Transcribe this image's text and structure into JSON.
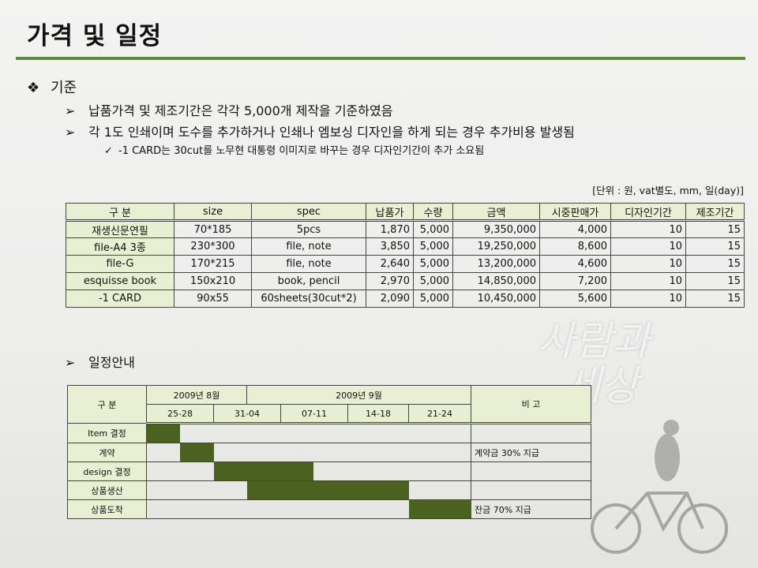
{
  "title": "가격 및 일정",
  "criteria": {
    "heading": "기준",
    "items": [
      "납품가격 및 제조기간은 각각 5,000개 제작을 기준하였음",
      "각 1도 인쇄이며 도수를 추가하거나 인쇄나 엠보싱 디자인을 하게 되는 경우 추가비용 발생됨"
    ],
    "sub": "-1 CARD는 30cut를 노무현 대통령 이미지로 바꾸는 경우 디자인기간이 추가 소요됨"
  },
  "unit": "[단위 : 원, vat별도, mm, 일(day)]",
  "price_table": {
    "headers": [
      "구 분",
      "size",
      "spec",
      "납품가",
      "수량",
      "금액",
      "시중판매가",
      "디자인기간",
      "제조기간"
    ],
    "rows": [
      [
        "재생신문연필",
        "70*185",
        "5pcs",
        "1,870",
        "5,000",
        "9,350,000",
        "4,000",
        "10",
        "15"
      ],
      [
        "file-A4 3종",
        "230*300",
        "file, note",
        "3,850",
        "5,000",
        "19,250,000",
        "8,600",
        "10",
        "15"
      ],
      [
        "file-G",
        "170*215",
        "file, note",
        "2,640",
        "5,000",
        "13,200,000",
        "4,600",
        "10",
        "15"
      ],
      [
        "esquisse book",
        "150x210",
        "book, pencil",
        "2,970",
        "5,000",
        "14,850,000",
        "7,200",
        "10",
        "15"
      ],
      [
        "-1 CARD",
        "90x55",
        "60sheets(30cut*2)",
        "2,090",
        "5,000",
        "10,450,000",
        "5,600",
        "10",
        "15"
      ]
    ]
  },
  "schedule": {
    "heading": "일정안내",
    "col_label": "구 분",
    "note_label": "비 고",
    "months": [
      "2009년 8월",
      "2009년 9월"
    ],
    "weeks": [
      "25-28",
      "31-04",
      "07-11",
      "14-18",
      "21-24"
    ],
    "tasks": [
      {
        "name": "Item 결정",
        "start": 0,
        "end": 1,
        "note": ""
      },
      {
        "name": "계약",
        "start": 1,
        "end": 2,
        "note": "계약금 30% 지급"
      },
      {
        "name": "design 결정",
        "start": 2,
        "end": 5,
        "note": ""
      },
      {
        "name": "상품생산",
        "start": 3,
        "end": 8,
        "note": ""
      },
      {
        "name": "상품도착",
        "start": 8,
        "end": 10,
        "note": "잔금 70% 지급"
      }
    ]
  },
  "watermark": [
    "사람과",
    "세상"
  ],
  "colors": {
    "accent": "#5f8a35",
    "bar": "#4a6120",
    "header": "#e9efd2"
  }
}
